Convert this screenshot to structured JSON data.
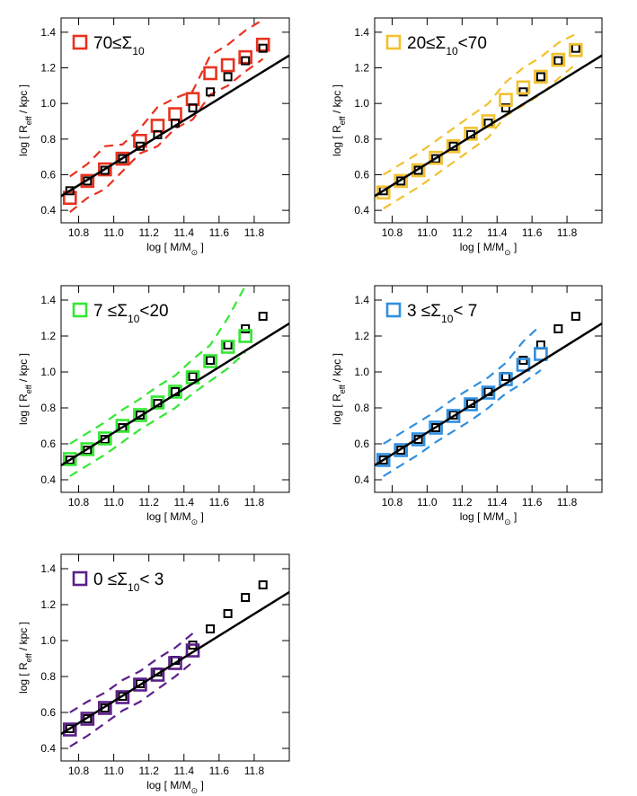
{
  "chart_data": [
    {
      "type": "scatter",
      "xlabel": [
        "log [ M/M",
        "⊙",
        " ]"
      ],
      "ylabel": [
        "log [ R",
        "eff",
        " / kpc ]"
      ],
      "xlim": [
        10.7,
        12.0
      ],
      "ylim": [
        0.33,
        1.48
      ],
      "xticks": [
        10.8,
        {
          "value": 11,
          "label": "11.0"
        },
        11.2,
        11.4,
        11.6,
        11.8
      ],
      "yticks": [
        0.4,
        0.6,
        0.8,
        {
          "value": 1,
          "label": "1.0"
        },
        1.2,
        1.4
      ],
      "series": [
        {
          "name": [
            "70≤Σ",
            "10"
          ],
          "color": "#e8321e",
          "marker": "square",
          "x": [
            10.75,
            10.85,
            10.95,
            11.05,
            11.15,
            11.25,
            11.35,
            11.45,
            11.55,
            11.65,
            11.75,
            11.85
          ],
          "values": [
            0.47,
            0.565,
            0.63,
            0.69,
            0.79,
            0.875,
            0.94,
            1.025,
            1.17,
            1.215,
            1.26,
            1.33
          ]
        },
        {
          "color": "#e8321e",
          "style": "dashed",
          "x": [
            10.75,
            10.85,
            10.95,
            11.05,
            11.15,
            11.25,
            11.35,
            11.45,
            11.55,
            11.65,
            11.75,
            11.85
          ],
          "values": [
            0.59,
            0.66,
            0.76,
            0.77,
            0.86,
            0.98,
            1.03,
            1.07,
            1.27,
            1.33,
            1.41,
            1.47
          ]
        },
        {
          "color": "#e8321e",
          "style": "dashed",
          "x": [
            10.75,
            10.85,
            10.95,
            11.05,
            11.15,
            11.25,
            11.35,
            11.45,
            11.55,
            11.65,
            11.75,
            11.85
          ],
          "values": [
            0.39,
            0.47,
            0.52,
            0.62,
            0.72,
            0.76,
            0.86,
            0.91,
            1.05,
            1.1,
            1.18,
            1.25
          ]
        },
        {
          "color": "#000000",
          "style": "solid",
          "x": [
            10.7,
            12.0
          ],
          "values": [
            0.48,
            1.27
          ]
        },
        {
          "color": "#000000",
          "marker": "small-square",
          "x": [
            10.75,
            10.85,
            10.95,
            11.05,
            11.15,
            11.25,
            11.35,
            11.45,
            11.55,
            11.65,
            11.75,
            11.85
          ],
          "values": [
            0.51,
            0.565,
            0.625,
            0.69,
            0.76,
            0.825,
            0.89,
            0.975,
            1.065,
            1.15,
            1.24,
            1.31
          ]
        }
      ]
    },
    {
      "type": "scatter",
      "xlabel": [
        "log [ M/M",
        "⊙",
        " ]"
      ],
      "ylabel": [
        "log [ R",
        "eff",
        " / kpc ]"
      ],
      "xlim": [
        10.7,
        12.0
      ],
      "ylim": [
        0.33,
        1.48
      ],
      "xticks": [
        10.8,
        {
          "value": 11,
          "label": "11.0"
        },
        11.2,
        11.4,
        11.6,
        11.8
      ],
      "yticks": [
        0.4,
        0.6,
        0.8,
        {
          "value": 1,
          "label": "1.0"
        },
        1.2,
        1.4
      ],
      "series": [
        {
          "color": "#000000",
          "marker": "small-square",
          "x": [
            10.75,
            10.85,
            10.95,
            11.05,
            11.15,
            11.25,
            11.35,
            11.45,
            11.55,
            11.65,
            11.75,
            11.85
          ],
          "values": [
            0.51,
            0.565,
            0.625,
            0.69,
            0.76,
            0.825,
            0.89,
            0.975,
            1.065,
            1.15,
            1.24,
            1.31
          ]
        },
        {
          "name": [
            "20≤Σ",
            "10",
            "<70"
          ],
          "color": "#f2c12e",
          "marker": "square",
          "x": [
            10.75,
            10.85,
            10.95,
            11.05,
            11.15,
            11.25,
            11.35,
            11.45,
            11.55,
            11.65,
            11.75,
            11.85
          ],
          "values": [
            0.5,
            0.565,
            0.625,
            0.695,
            0.76,
            0.83,
            0.9,
            1.02,
            1.09,
            1.15,
            1.245,
            1.3
          ]
        },
        {
          "color": "#f2c12e",
          "style": "dashed",
          "x": [
            10.75,
            10.85,
            10.95,
            11.05,
            11.15,
            11.25,
            11.35,
            11.45,
            11.55,
            11.65,
            11.75,
            11.85
          ],
          "values": [
            0.6,
            0.66,
            0.72,
            0.79,
            0.86,
            0.93,
            1.0,
            1.12,
            1.2,
            1.26,
            1.34,
            1.39
          ]
        },
        {
          "color": "#f2c12e",
          "style": "dashed",
          "x": [
            10.75,
            10.85,
            10.95,
            11.05,
            11.15,
            11.25,
            11.35,
            11.45,
            11.55,
            11.65,
            11.75,
            11.85
          ],
          "values": [
            0.41,
            0.47,
            0.53,
            0.6,
            0.67,
            0.74,
            0.81,
            0.93,
            0.99,
            1.05,
            1.14,
            1.22
          ]
        },
        {
          "color": "#000000",
          "style": "solid",
          "x": [
            10.7,
            12.0
          ],
          "values": [
            0.48,
            1.27
          ]
        }
      ]
    },
    {
      "type": "scatter",
      "xlabel": [
        "log [ M/M",
        "⊙",
        " ]"
      ],
      "ylabel": [
        "log [ R",
        "eff",
        " / kpc ]"
      ],
      "xlim": [
        10.7,
        12.0
      ],
      "ylim": [
        0.33,
        1.48
      ],
      "xticks": [
        10.8,
        {
          "value": 11,
          "label": "11.0"
        },
        11.2,
        11.4,
        11.6,
        11.8
      ],
      "yticks": [
        0.4,
        0.6,
        0.8,
        {
          "value": 1,
          "label": "1.0"
        },
        1.2,
        1.4
      ],
      "series": [
        {
          "color": "#000000",
          "marker": "small-square",
          "x": [
            10.75,
            10.85,
            10.95,
            11.05,
            11.15,
            11.25,
            11.35,
            11.45,
            11.55,
            11.65,
            11.75,
            11.85
          ],
          "values": [
            0.51,
            0.565,
            0.625,
            0.69,
            0.76,
            0.825,
            0.89,
            0.975,
            1.065,
            1.15,
            1.24,
            1.31
          ]
        },
        {
          "name": [
            "7 ≤Σ",
            "10",
            "<20"
          ],
          "color": "#33e833",
          "marker": "square",
          "x": [
            10.75,
            10.85,
            10.95,
            11.05,
            11.15,
            11.25,
            11.35,
            11.45,
            11.55,
            11.65,
            11.75
          ],
          "values": [
            0.515,
            0.57,
            0.63,
            0.7,
            0.76,
            0.83,
            0.89,
            0.97,
            1.06,
            1.14,
            1.2
          ]
        },
        {
          "color": "#33e833",
          "style": "dashed",
          "x": [
            10.75,
            10.85,
            10.95,
            11.05,
            11.15,
            11.25,
            11.35,
            11.45,
            11.55,
            11.65,
            11.75
          ],
          "values": [
            0.6,
            0.66,
            0.72,
            0.79,
            0.85,
            0.92,
            0.98,
            1.07,
            1.15,
            1.3,
            1.48
          ]
        },
        {
          "color": "#33e833",
          "style": "dashed",
          "x": [
            10.75,
            10.85,
            10.95,
            11.05,
            11.15,
            11.25,
            11.35,
            11.45,
            11.55,
            11.65,
            11.75
          ],
          "values": [
            0.42,
            0.48,
            0.54,
            0.61,
            0.68,
            0.74,
            0.8,
            0.88,
            0.95,
            1.02,
            1.11
          ]
        },
        {
          "color": "#000000",
          "style": "solid",
          "x": [
            10.7,
            12.0
          ],
          "values": [
            0.48,
            1.27
          ]
        }
      ]
    },
    {
      "type": "scatter",
      "xlabel": [
        "log [ M/M",
        "⊙",
        " ]"
      ],
      "ylabel": [
        "log [ R",
        "eff",
        " / kpc ]"
      ],
      "xlim": [
        10.7,
        12.0
      ],
      "ylim": [
        0.33,
        1.48
      ],
      "xticks": [
        10.8,
        {
          "value": 11,
          "label": "11.0"
        },
        11.2,
        11.4,
        11.6,
        11.8
      ],
      "yticks": [
        0.4,
        0.6,
        0.8,
        {
          "value": 1,
          "label": "1.0"
        },
        1.2,
        1.4
      ],
      "series": [
        {
          "color": "#000000",
          "marker": "small-square",
          "x": [
            10.75,
            10.85,
            10.95,
            11.05,
            11.15,
            11.25,
            11.35,
            11.45,
            11.55,
            11.65,
            11.75,
            11.85
          ],
          "values": [
            0.51,
            0.565,
            0.625,
            0.69,
            0.76,
            0.825,
            0.89,
            0.975,
            1.065,
            1.15,
            1.24,
            1.31
          ]
        },
        {
          "name": [
            "3 ≤Σ",
            "10",
            "< 7"
          ],
          "color": "#2f8fe0",
          "marker": "square",
          "x": [
            10.75,
            10.85,
            10.95,
            11.05,
            11.15,
            11.25,
            11.35,
            11.45,
            11.55,
            11.65
          ],
          "values": [
            0.51,
            0.565,
            0.625,
            0.69,
            0.755,
            0.82,
            0.885,
            0.96,
            1.04,
            1.1
          ]
        },
        {
          "color": "#2f8fe0",
          "style": "dashed",
          "x": [
            10.75,
            10.85,
            10.95,
            11.05,
            11.15,
            11.25,
            11.35,
            11.45,
            11.55,
            11.65
          ],
          "values": [
            0.6,
            0.66,
            0.72,
            0.78,
            0.85,
            0.91,
            0.97,
            1.05,
            1.17,
            1.26
          ]
        },
        {
          "color": "#2f8fe0",
          "style": "dashed",
          "x": [
            10.75,
            10.85,
            10.95,
            11.05,
            11.15,
            11.25,
            11.35,
            11.45,
            11.55,
            11.65
          ],
          "values": [
            0.42,
            0.48,
            0.54,
            0.61,
            0.67,
            0.73,
            0.8,
            0.88,
            0.94,
            1.01
          ]
        },
        {
          "color": "#000000",
          "style": "solid",
          "x": [
            10.7,
            12.0
          ],
          "values": [
            0.48,
            1.27
          ]
        }
      ]
    },
    {
      "type": "scatter",
      "xlabel": [
        "log [ M/M",
        "⊙",
        " ]"
      ],
      "ylabel": [
        "log [ R",
        "eff",
        " / kpc ]"
      ],
      "xlim": [
        10.7,
        12.0
      ],
      "ylim": [
        0.33,
        1.48
      ],
      "xticks": [
        10.8,
        {
          "value": 11,
          "label": "11.0"
        },
        11.2,
        11.4,
        11.6,
        11.8
      ],
      "yticks": [
        0.4,
        0.6,
        0.8,
        {
          "value": 1,
          "label": "1.0"
        },
        1.2,
        1.4
      ],
      "series": [
        {
          "color": "#000000",
          "marker": "small-square",
          "x": [
            10.75,
            10.85,
            10.95,
            11.05,
            11.15,
            11.25,
            11.35,
            11.45,
            11.55,
            11.65,
            11.75,
            11.85
          ],
          "values": [
            0.51,
            0.565,
            0.625,
            0.69,
            0.76,
            0.825,
            0.89,
            0.975,
            1.065,
            1.15,
            1.24,
            1.31
          ]
        },
        {
          "name": [
            "0 ≤Σ",
            "10",
            "< 3"
          ],
          "color": "#5c1f8a",
          "marker": "square",
          "x": [
            10.75,
            10.85,
            10.95,
            11.05,
            11.15,
            11.25,
            11.35,
            11.45
          ],
          "values": [
            0.505,
            0.565,
            0.625,
            0.685,
            0.755,
            0.81,
            0.875,
            0.945
          ]
        },
        {
          "color": "#5c1f8a",
          "style": "dashed",
          "x": [
            10.75,
            10.85,
            10.95,
            11.05,
            11.15,
            11.25,
            11.35,
            11.45
          ],
          "values": [
            0.6,
            0.66,
            0.71,
            0.78,
            0.83,
            0.9,
            0.96,
            1.04
          ]
        },
        {
          "color": "#5c1f8a",
          "style": "dashed",
          "x": [
            10.75,
            10.85,
            10.95,
            11.05,
            11.15,
            11.25,
            11.35,
            11.45
          ],
          "values": [
            0.41,
            0.47,
            0.54,
            0.61,
            0.66,
            0.73,
            0.8,
            0.88
          ]
        },
        {
          "color": "#000000",
          "style": "solid",
          "x": [
            10.7,
            12.0
          ],
          "values": [
            0.48,
            1.27
          ]
        }
      ]
    }
  ]
}
